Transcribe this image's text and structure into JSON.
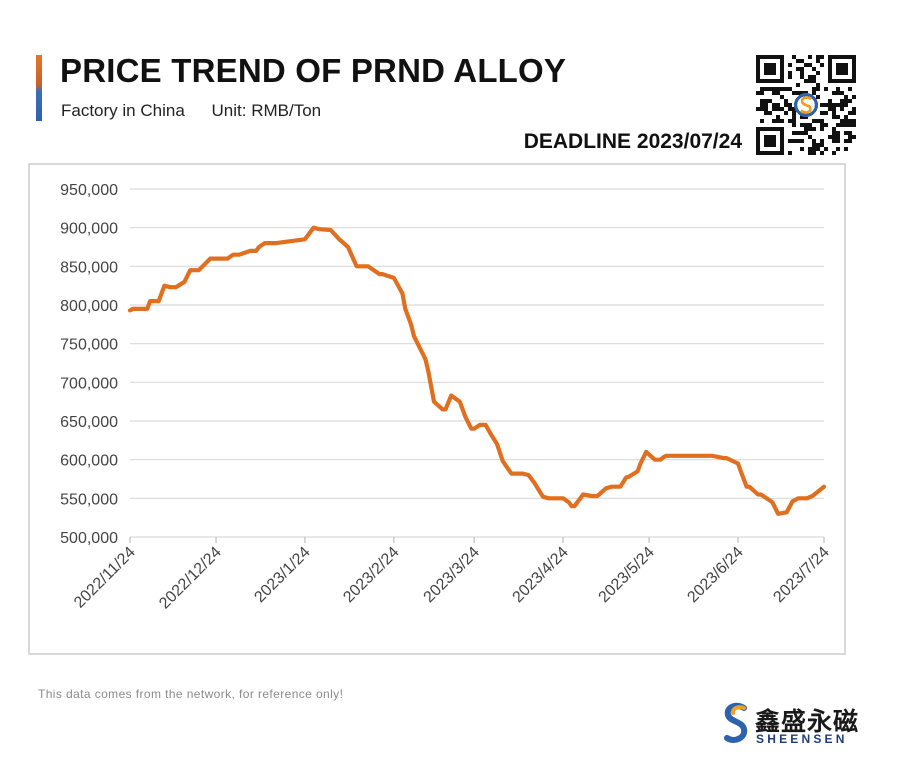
{
  "header": {
    "title": "PRICE TREND OF PRND ALLOY",
    "factory": "Factory in China",
    "unit": "Unit: RMB/Ton",
    "deadline": "DEADLINE 2023/07/24"
  },
  "footnote": "This data comes from the network, for reference only!",
  "brand": {
    "name_cn": "鑫盛永磁",
    "name_en": "SHEENSEN"
  },
  "colors": {
    "line": "#e06f1f",
    "grid": "#d9d9d9",
    "axis_text": "#444444",
    "accent_orange": "#e8742a",
    "accent_blue": "#2f62ad"
  },
  "icons": {
    "qr": "qr-code-icon",
    "logo": "sheensen-logo-icon"
  },
  "chart_data": {
    "type": "line",
    "title": "PRICE TREND OF PRND ALLOY",
    "xlabel": "",
    "ylabel": "",
    "ylim": [
      500000,
      950000
    ],
    "yticks": [
      500000,
      550000,
      600000,
      650000,
      700000,
      750000,
      800000,
      850000,
      900000,
      950000
    ],
    "ytick_labels": [
      "500,000",
      "550,000",
      "600,000",
      "650,000",
      "700,000",
      "750,000",
      "800,000",
      "850,000",
      "900,000",
      "950,000"
    ],
    "x_tick_labels": [
      "2022/11/24",
      "2022/12/24",
      "2023/1/24",
      "2023/2/24",
      "2023/3/24",
      "2023/4/24",
      "2023/5/24",
      "2023/6/24",
      "2023/7/24"
    ],
    "x_tick_dates": [
      "2022-11-24",
      "2022-12-24",
      "2023-01-24",
      "2023-02-24",
      "2023-03-24",
      "2023-04-24",
      "2023-05-24",
      "2023-06-24",
      "2023-07-24"
    ],
    "grid": true,
    "legend": "none",
    "series": [
      {
        "x": [
          "2022-11-24",
          "2022-11-25",
          "2022-11-27",
          "2022-11-30",
          "2022-12-01",
          "2022-12-04",
          "2022-12-06",
          "2022-12-08",
          "2022-12-10",
          "2022-12-13",
          "2022-12-15",
          "2022-12-16",
          "2022-12-18",
          "2022-12-22",
          "2022-12-23",
          "2022-12-28",
          "2022-12-30",
          "2023-01-01",
          "2023-01-05",
          "2023-01-07",
          "2023-01-08",
          "2023-01-10",
          "2023-01-14",
          "2023-01-18",
          "2023-01-24",
          "2023-01-27",
          "2023-01-29",
          "2023-02-02",
          "2023-02-05",
          "2023-02-08",
          "2023-02-11",
          "2023-02-13",
          "2023-02-15",
          "2023-02-19",
          "2023-02-20",
          "2023-02-24",
          "2023-02-27",
          "2023-02-28",
          "2023-03-02",
          "2023-03-03",
          "2023-03-05",
          "2023-03-07",
          "2023-03-08",
          "2023-03-10",
          "2023-03-13",
          "2023-03-14",
          "2023-03-16",
          "2023-03-19",
          "2023-03-21",
          "2023-03-23",
          "2023-03-24",
          "2023-03-26",
          "2023-03-28",
          "2023-03-30",
          "2023-04-01",
          "2023-04-03",
          "2023-04-06",
          "2023-04-10",
          "2023-04-12",
          "2023-04-14",
          "2023-04-17",
          "2023-04-19",
          "2023-04-20",
          "2023-04-24",
          "2023-04-26",
          "2023-04-27",
          "2023-04-28",
          "2023-05-01",
          "2023-05-04",
          "2023-05-06",
          "2023-05-09",
          "2023-05-11",
          "2023-05-14",
          "2023-05-16",
          "2023-05-17",
          "2023-05-20",
          "2023-05-21",
          "2023-05-23",
          "2023-05-26",
          "2023-05-28",
          "2023-05-29",
          "2023-05-30",
          "2023-06-02",
          "2023-06-04",
          "2023-06-06",
          "2023-06-08",
          "2023-06-11",
          "2023-06-15",
          "2023-06-19",
          "2023-06-20",
          "2023-06-24",
          "2023-06-25",
          "2023-06-27",
          "2023-06-28",
          "2023-07-01",
          "2023-07-02",
          "2023-07-04",
          "2023-07-06",
          "2023-07-08",
          "2023-07-11",
          "2023-07-13",
          "2023-07-15",
          "2023-07-16",
          "2023-07-18",
          "2023-07-20",
          "2023-07-24"
        ],
        "values": [
          793000,
          795000,
          795000,
          795000,
          805000,
          805000,
          825000,
          823000,
          823000,
          830000,
          845000,
          845000,
          845000,
          860000,
          860000,
          860000,
          865000,
          865000,
          870000,
          870000,
          875000,
          880000,
          880000,
          882000,
          885000,
          900000,
          898000,
          897000,
          885000,
          875000,
          850000,
          850000,
          850000,
          840000,
          840000,
          835000,
          815000,
          795000,
          775000,
          760000,
          745000,
          730000,
          715000,
          675000,
          665000,
          665000,
          683000,
          675000,
          655000,
          640000,
          640000,
          645000,
          645000,
          632000,
          620000,
          598000,
          582000,
          582000,
          580000,
          570000,
          552000,
          550000,
          550000,
          550000,
          545000,
          540000,
          540000,
          555000,
          553000,
          553000,
          563000,
          565000,
          565000,
          577000,
          578000,
          585000,
          595000,
          610000,
          600000,
          600000,
          603000,
          605000,
          605000,
          605000,
          605000,
          605000,
          605000,
          605000,
          602000,
          602000,
          595000,
          585000,
          565000,
          565000,
          555000,
          555000,
          550000,
          545000,
          530000,
          532000,
          546000,
          550000,
          550000,
          550000,
          553000,
          565000
        ]
      }
    ]
  }
}
